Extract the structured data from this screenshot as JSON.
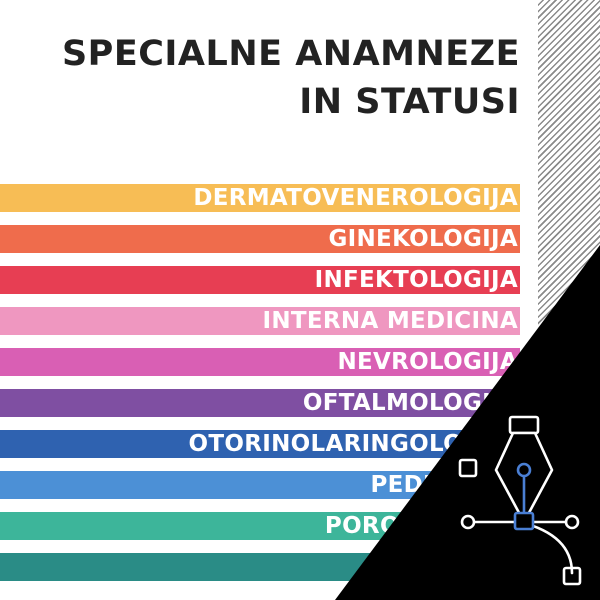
{
  "title": {
    "line1": "SPECIALNE ANAMNEZE",
    "line2": "IN STATUSI"
  },
  "specialties": [
    {
      "label": "DERMATOVENEROLOGIJA",
      "color": "#f7bd55"
    },
    {
      "label": "GINEKOLOGIJA",
      "color": "#ef6c4c"
    },
    {
      "label": "INFEKTOLOGIJA",
      "color": "#e73e53"
    },
    {
      "label": "INTERNA MEDICINA",
      "color": "#ef97c0"
    },
    {
      "label": "NEVROLOGIJA",
      "color": "#d95fb4"
    },
    {
      "label": "OFTALMOLOGIJA",
      "color": "#7f4fa2"
    },
    {
      "label": "OTORINOLARINGOLOGIJA",
      "color": "#2f62b0"
    },
    {
      "label": "PEDIATRIJA",
      "color": "#4c90d6"
    },
    {
      "label": "PORODNIŠTVO",
      "color": "#3db59a"
    },
    {
      "label": "",
      "color": "#2a8c86"
    }
  ],
  "corner_icon": "pen-tool-icon"
}
